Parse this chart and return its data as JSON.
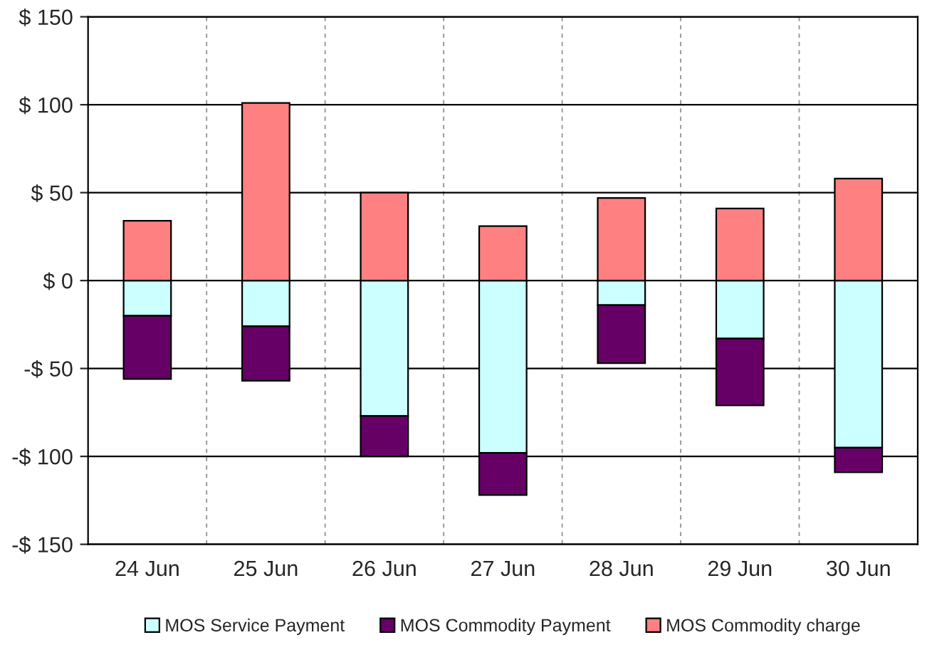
{
  "chart_data": {
    "type": "bar",
    "stacked": true,
    "categories": [
      "24 Jun",
      "25 Jun",
      "26 Jun",
      "27 Jun",
      "28 Jun",
      "29 Jun",
      "30 Jun"
    ],
    "series": [
      {
        "name": "MOS Service Payment",
        "color": "#ccffff",
        "values": [
          -20,
          -26,
          -77,
          -98,
          -14,
          -33,
          -95
        ]
      },
      {
        "name": "MOS Commodity Payment",
        "color": "#660066",
        "values": [
          -36,
          -31,
          -23,
          -24,
          -33,
          -38,
          -14
        ]
      },
      {
        "name": "MOS Commodity charge",
        "color": "#ff8080",
        "values": [
          34,
          101,
          50,
          31,
          47,
          41,
          58
        ]
      }
    ],
    "ylim": [
      -150,
      150
    ],
    "yticks": [
      {
        "value": -150,
        "label": "-$ 150"
      },
      {
        "value": -100,
        "label": "-$ 100"
      },
      {
        "value": -50,
        "label": "-$ 50"
      },
      {
        "value": 0,
        "label": "$ 0"
      },
      {
        "value": 50,
        "label": "$ 50"
      },
      {
        "value": 100,
        "label": "$ 100"
      },
      {
        "value": 150,
        "label": "$ 150"
      }
    ],
    "grid": true,
    "legend": "bottom"
  }
}
